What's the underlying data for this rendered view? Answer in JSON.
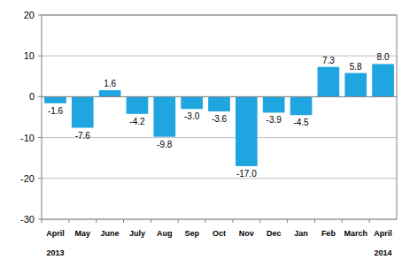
{
  "chart_data": {
    "type": "bar",
    "categories": [
      "April",
      "May",
      "June",
      "July",
      "Aug",
      "Sep",
      "Oct",
      "Nov",
      "Dec",
      "Jan",
      "Feb",
      "March",
      "April"
    ],
    "values": [
      -1.6,
      -7.6,
      1.6,
      -4.2,
      -9.8,
      -3.0,
      -3.6,
      -17.0,
      -3.9,
      -4.5,
      7.3,
      5.8,
      8.0
    ],
    "value_labels": [
      "-1.6",
      "-7.6",
      "1.6",
      "-4.2",
      "-9.8",
      "-3.0",
      "-3.6",
      "-17.0",
      "-3.9",
      "-4.5",
      "7.3",
      "5.8",
      "8.0"
    ],
    "color": "#1fa5e0",
    "ylim": [
      -30,
      20
    ],
    "yticks": [
      -30,
      -20,
      -10,
      0,
      10,
      20
    ],
    "grid": true,
    "data_labels": true,
    "annotations": [
      "2013",
      "2014"
    ]
  }
}
